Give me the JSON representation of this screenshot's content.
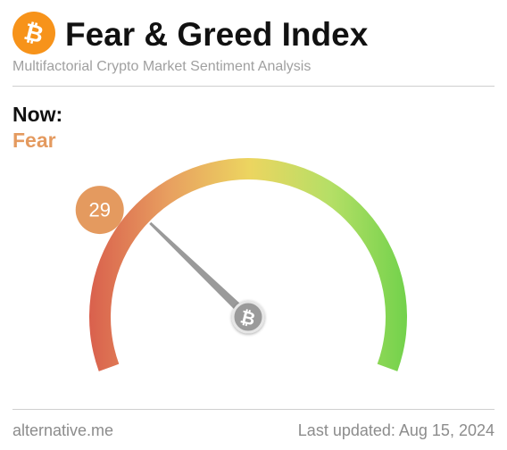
{
  "header": {
    "title": "Fear & Greed Index",
    "subtitle": "Multifactorial Crypto Market Sentiment Analysis",
    "logo_icon": "bitcoin-icon",
    "logo_color": "#f7931a"
  },
  "status": {
    "now_label": "Now:",
    "classification": "Fear",
    "classification_color": "#e49a5f"
  },
  "gauge": {
    "value": 29,
    "value_label": "29",
    "min": 0,
    "max": 100,
    "value_color": "#e49a5f",
    "gradient_colors": [
      "#d9604d",
      "#e8a060",
      "#ecd560",
      "#b5df66",
      "#6fd14a"
    ],
    "needle_color": "#9a9a9a",
    "hub_icon": "bitcoin-icon"
  },
  "footer": {
    "source": "alternative.me",
    "last_updated": "Last updated: Aug 15, 2024"
  }
}
